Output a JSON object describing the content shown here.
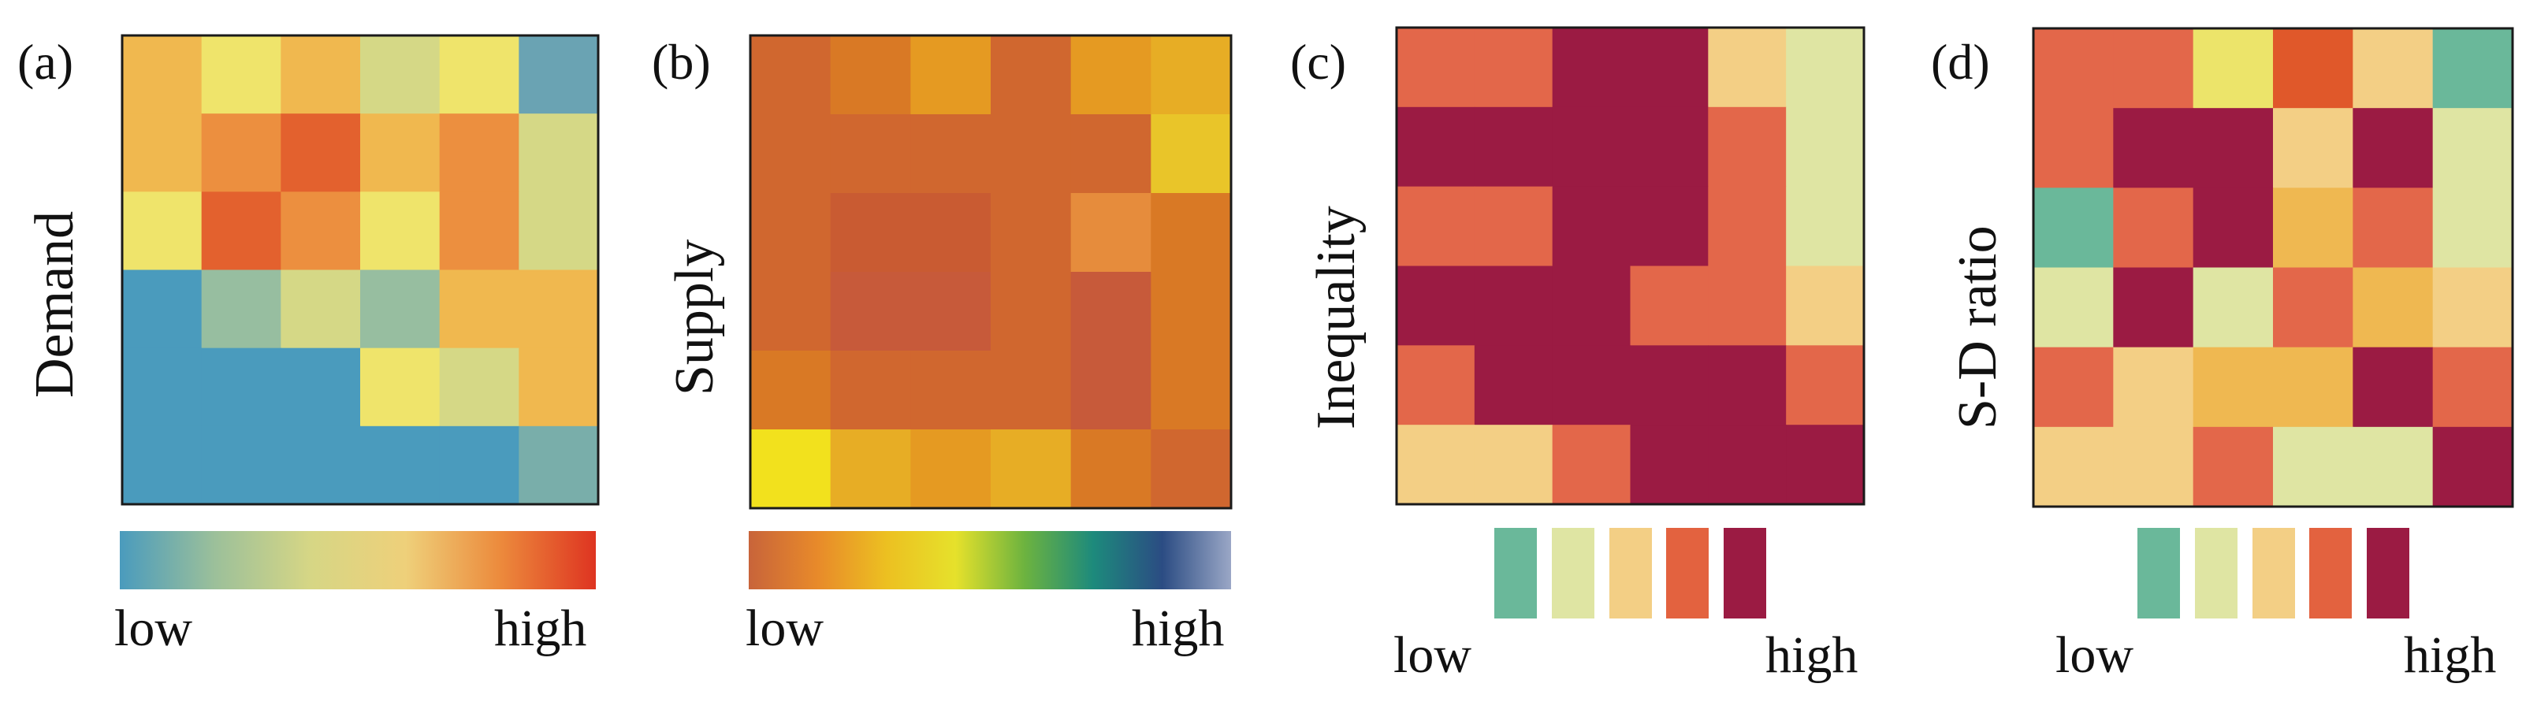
{
  "figure": {
    "domain": "Chart"
  },
  "chart_data": [
    {
      "type": "heatmap",
      "panel_label": "(a)",
      "ylabel": "Demand",
      "legend": {
        "kind": "continuous",
        "low_label": "low",
        "high_label": "high",
        "colors": [
          "#4a9bbd",
          "#9cc09a",
          "#d6d685",
          "#eed07a",
          "#ec8a3c",
          "#de3421"
        ]
      },
      "levels": [
        [
          5,
          6,
          5,
          7,
          6,
          4
        ],
        [
          5,
          4,
          3,
          5,
          4,
          7
        ],
        [
          6,
          3,
          4,
          6,
          4,
          7
        ],
        [
          1,
          8,
          7,
          8,
          5,
          5
        ],
        [
          1,
          1,
          1,
          6,
          7,
          5
        ],
        [
          1,
          1,
          1,
          1,
          1,
          9
        ]
      ],
      "palette": {
        "1": "#4a9bbd",
        "3": "#e3612e",
        "4": "#ec8f3f",
        "5": "#f0b84f",
        "6": "#efe46b",
        "7": "#d5d886",
        "8": "#97bea0",
        "9": "#79aeaa",
        "4b": "#6aa3b3"
      },
      "overrides": {
        "0-5": "#6aa3b3"
      }
    },
    {
      "type": "heatmap",
      "panel_label": "(b)",
      "ylabel": "Supply",
      "legend": {
        "kind": "continuous",
        "low_label": "low",
        "high_label": "high",
        "colors": [
          "#c8643a",
          "#e88a2a",
          "#ecc021",
          "#e6e12b",
          "#6db33f",
          "#1d8a7c",
          "#2b4c83",
          "#9aa7c6"
        ]
      },
      "levels": [
        [
          1,
          2,
          3,
          1,
          3,
          4
        ],
        [
          1,
          1,
          1,
          1,
          1,
          5
        ],
        [
          1,
          0,
          0,
          1,
          6,
          2
        ],
        [
          1,
          7,
          7,
          1,
          7,
          2
        ],
        [
          2,
          1,
          1,
          1,
          7,
          2
        ],
        [
          8,
          4,
          3,
          4,
          2,
          1
        ]
      ],
      "palette": {
        "0": "#c95b32",
        "1": "#d0672f",
        "2": "#d97925",
        "3": "#e59a22",
        "4": "#e7ad25",
        "5": "#e9c529",
        "6": "#e68c3c",
        "7": "#c75a3a",
        "8": "#f2e11d"
      }
    },
    {
      "type": "heatmap",
      "panel_label": "(c)",
      "ylabel": "Inequality",
      "legend": {
        "kind": "discrete",
        "low_label": "low",
        "high_label": "high",
        "classes": [
          "#6ab89a",
          "#dfe5a3",
          "#f3cf85",
          "#e3623f",
          "#9b1b43"
        ]
      },
      "levels": [
        [
          4,
          4,
          5,
          5,
          3,
          2
        ],
        [
          5,
          5,
          5,
          5,
          4,
          2
        ],
        [
          4,
          4,
          5,
          5,
          4,
          2
        ],
        [
          5,
          5,
          5,
          4,
          4,
          3
        ],
        [
          4,
          5,
          5,
          5,
          5,
          4
        ],
        [
          3,
          3,
          4,
          5,
          5,
          5
        ]
      ],
      "palette": {
        "1": "#6ab89a",
        "2": "#dfe5a3",
        "3": "#f3cf85",
        "4": "#e3674a",
        "5": "#9b1b43"
      }
    },
    {
      "type": "heatmap",
      "panel_label": "(d)",
      "ylabel": "S-D ratio",
      "legend": {
        "kind": "discrete",
        "low_label": "low",
        "high_label": "high",
        "classes": [
          "#6ab89a",
          "#dfe5a3",
          "#f3cf85",
          "#e3623f",
          "#9b1b43"
        ]
      },
      "levels": [
        [
          4,
          4,
          6,
          7,
          3,
          1
        ],
        [
          4,
          5,
          5,
          3,
          5,
          2
        ],
        [
          1,
          4,
          5,
          8,
          4,
          2
        ],
        [
          2,
          5,
          2,
          4,
          8,
          3
        ],
        [
          4,
          3,
          8,
          8,
          5,
          4
        ],
        [
          3,
          3,
          4,
          2,
          2,
          5
        ]
      ],
      "palette": {
        "1": "#6ab89a",
        "2": "#dfe5a3",
        "3": "#f3cf85",
        "4": "#e3674a",
        "5": "#9b1b43",
        "6": "#ece46a",
        "7": "#e0582a",
        "8": "#efb851"
      }
    }
  ]
}
